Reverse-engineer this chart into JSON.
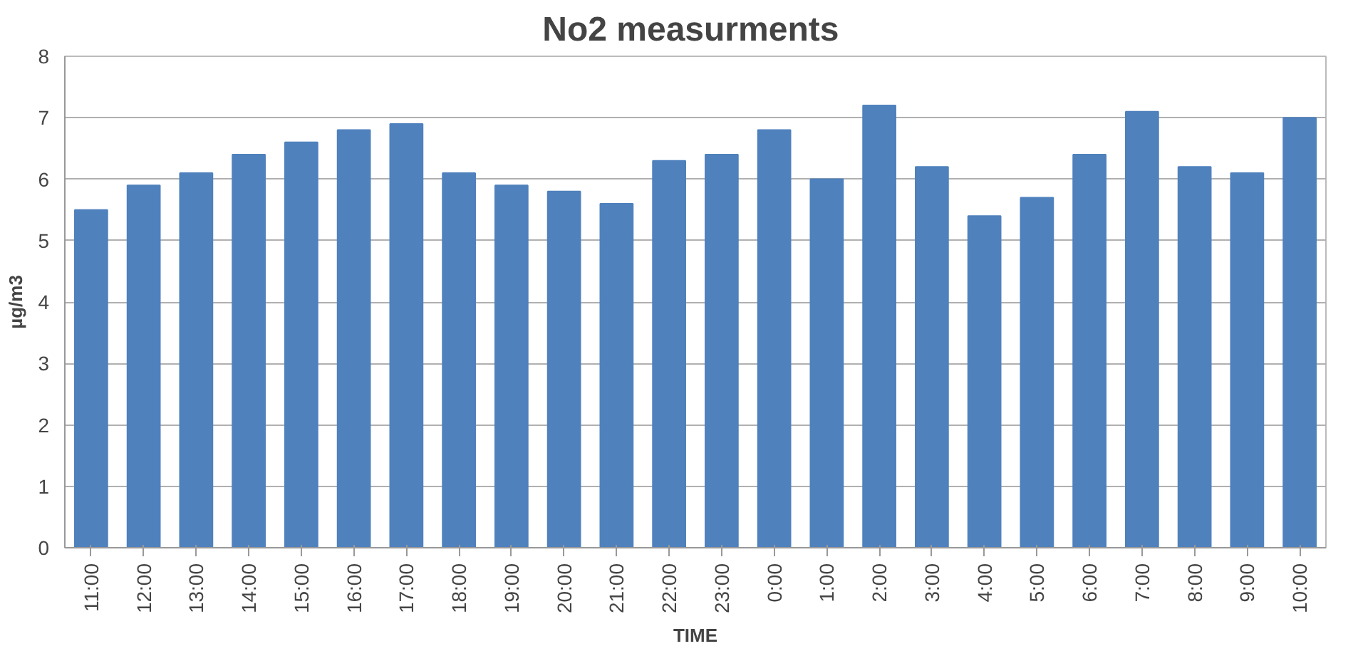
{
  "chart_data": {
    "type": "bar",
    "title": "No2  measurments",
    "xlabel": "TIME",
    "ylabel": "µg/m3",
    "categories": [
      "11:00",
      "12:00",
      "13:00",
      "14:00",
      "15:00",
      "16:00",
      "17:00",
      "18:00",
      "19:00",
      "20:00",
      "21:00",
      "22:00",
      "23:00",
      "0:00",
      "1:00",
      "2:00",
      "3:00",
      "4:00",
      "5:00",
      "6:00",
      "7:00",
      "8:00",
      "9:00",
      "10:00"
    ],
    "values": [
      5.5,
      5.9,
      6.1,
      6.4,
      6.6,
      6.8,
      6.9,
      6.1,
      5.9,
      5.8,
      5.6,
      6.3,
      6.4,
      6.8,
      6.0,
      7.2,
      6.2,
      5.4,
      5.7,
      6.4,
      7.1,
      6.2,
      6.1,
      7.0
    ],
    "color": "#4f81bd",
    "ylim": [
      0,
      8
    ],
    "yticks": [
      0,
      1,
      2,
      3,
      4,
      5,
      6,
      7,
      8
    ],
    "grid": "y"
  }
}
